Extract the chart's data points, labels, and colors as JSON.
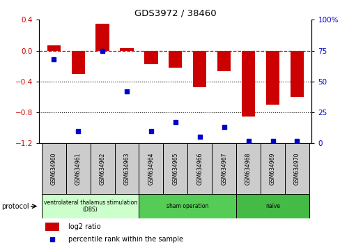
{
  "title": "GDS3972 / 38460",
  "samples": [
    "GSM634960",
    "GSM634961",
    "GSM634962",
    "GSM634963",
    "GSM634964",
    "GSM634965",
    "GSM634966",
    "GSM634967",
    "GSM634968",
    "GSM634969",
    "GSM634970"
  ],
  "log2_ratio": [
    0.07,
    -0.3,
    0.35,
    0.03,
    -0.18,
    -0.22,
    -0.47,
    -0.27,
    -0.85,
    -0.7,
    -0.6
  ],
  "percentile_rank": [
    68,
    10,
    75,
    42,
    10,
    17,
    5,
    13,
    2,
    2,
    2
  ],
  "ylim_left": [
    -1.2,
    0.4
  ],
  "ylim_right": [
    0,
    100
  ],
  "bar_color": "#cc0000",
  "dot_color": "#0000cc",
  "dashed_line_color": "#cc0000",
  "dotted_line_color": "#000000",
  "left_yticks": [
    -1.2,
    -0.8,
    -0.4,
    0.0,
    0.4
  ],
  "right_yticks": [
    0,
    25,
    50,
    75,
    100
  ],
  "protocol_groups": [
    {
      "label": "ventrolateral thalamus stimulation\n(DBS)",
      "start": 0,
      "end": 3,
      "color": "#ccffcc"
    },
    {
      "label": "sham operation",
      "start": 4,
      "end": 7,
      "color": "#55cc55"
    },
    {
      "label": "naive",
      "start": 8,
      "end": 10,
      "color": "#44bb44"
    }
  ],
  "legend_bar_label": "log2 ratio",
  "legend_dot_label": "percentile rank within the sample",
  "protocol_label": "protocol",
  "sample_cell_color": "#cccccc",
  "plot_bg_color": "#ffffff",
  "bar_width": 0.55
}
